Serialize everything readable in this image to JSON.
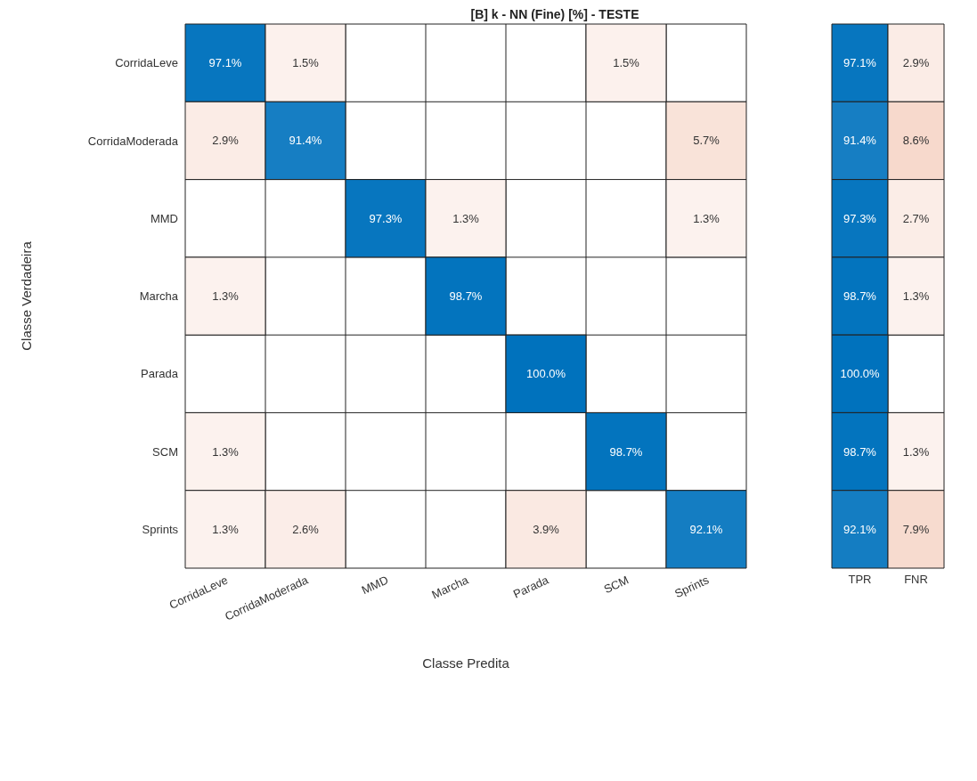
{
  "chart_data": [
    {
      "type": "heatmap",
      "title": "[B] k - NN (Fine) [%] - TESTE",
      "xlabel": "Classe Predita",
      "ylabel": "Classe Verdadeira",
      "colors": [
        "#0072bd",
        "#d95319"
      ],
      "categories": [
        "CorridaLeve",
        "CorridaModerada",
        "MMD",
        "Marcha",
        "Parada",
        "SCM",
        "Sprints"
      ],
      "y_categories": [
        "CorridaLeve",
        "CorridaModerada",
        "MMD",
        "Marcha",
        "Parada",
        "SCM",
        "Sprints"
      ],
      "cells": [
        [
          97.1,
          1.5,
          null,
          null,
          null,
          1.5,
          null
        ],
        [
          2.9,
          91.4,
          null,
          null,
          null,
          null,
          5.7
        ],
        [
          null,
          null,
          97.3,
          1.3,
          null,
          null,
          1.3
        ],
        [
          1.3,
          null,
          null,
          98.7,
          null,
          null,
          null
        ],
        [
          null,
          null,
          null,
          null,
          100.0,
          null,
          null
        ],
        [
          1.3,
          null,
          null,
          null,
          null,
          98.7,
          null
        ],
        [
          1.3,
          2.6,
          null,
          null,
          3.9,
          null,
          92.1
        ]
      ],
      "cell_labels": [
        [
          "97.1%",
          "1.5%",
          null,
          null,
          null,
          "1.5%",
          null
        ],
        [
          "2.9%",
          "91.4%",
          null,
          null,
          null,
          null,
          "5.7%"
        ],
        [
          null,
          null,
          "97.3%",
          "1.3%",
          null,
          null,
          "1.3%"
        ],
        [
          "1.3%",
          null,
          null,
          "98.7%",
          null,
          null,
          null
        ],
        [
          null,
          null,
          null,
          null,
          "100.0%",
          null,
          null
        ],
        [
          "1.3%",
          null,
          null,
          null,
          null,
          "98.7%",
          null
        ],
        [
          "1.3%",
          "2.6%",
          null,
          null,
          "3.9%",
          null,
          "92.1%"
        ]
      ]
    },
    {
      "type": "heatmap",
      "colors": [
        "#0072bd",
        "#d95319"
      ],
      "tick_labels": "x",
      "categories": [
        "TPR",
        "FNR"
      ],
      "y_categories": [
        null,
        null,
        null,
        null,
        null,
        null,
        null
      ],
      "cells": [
        [
          97.1,
          2.9
        ],
        [
          91.4,
          8.6
        ],
        [
          97.3,
          2.7
        ],
        [
          98.7,
          1.3
        ],
        [
          100.0,
          null
        ],
        [
          98.7,
          1.3
        ],
        [
          92.1,
          7.9
        ]
      ],
      "cell_labels": [
        [
          "97.1%",
          "2.9%"
        ],
        [
          "91.4%",
          "8.6%"
        ],
        [
          "97.3%",
          "2.7%"
        ],
        [
          "98.7%",
          "1.3%"
        ],
        [
          "100.0%",
          null
        ],
        [
          "98.7%",
          "1.3%"
        ],
        [
          "92.1%",
          "7.9%"
        ]
      ]
    }
  ]
}
